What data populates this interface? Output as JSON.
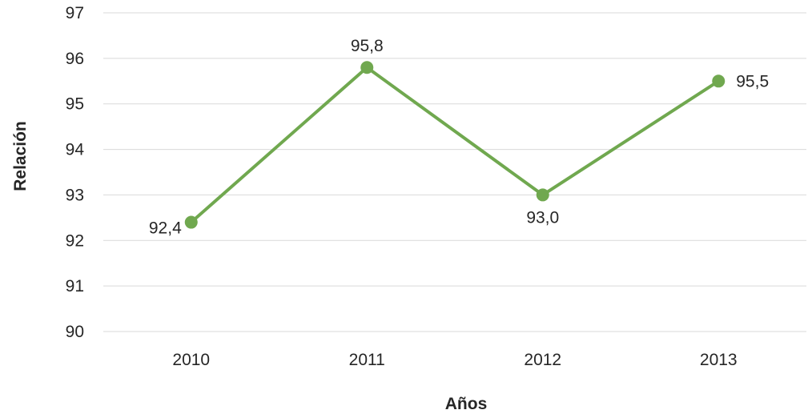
{
  "chart_data": {
    "type": "line",
    "title": "",
    "xlabel": "Años",
    "ylabel": "Relación",
    "categories": [
      "2010",
      "2011",
      "2012",
      "2013"
    ],
    "series": [
      {
        "values": [
          92.4,
          95.8,
          93.0,
          95.5
        ],
        "data_labels": [
          "92,4",
          "95,8",
          "93,0",
          "95,5"
        ],
        "color": "#70a84f"
      }
    ],
    "ylim": [
      90,
      97
    ],
    "yticks": [
      90,
      91,
      92,
      93,
      94,
      95,
      96,
      97
    ],
    "grid": true,
    "legend": "none"
  }
}
